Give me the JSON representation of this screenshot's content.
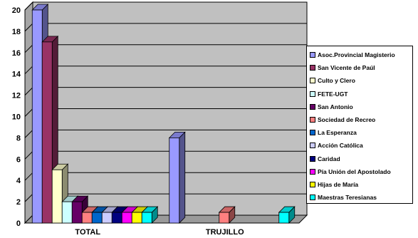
{
  "chart_data": {
    "type": "bar",
    "style": "3d-clustered-column",
    "categories": [
      "TOTAL",
      "TRUJILLO"
    ],
    "ylim": [
      0,
      20
    ],
    "yticks": [
      0,
      2,
      4,
      6,
      8,
      10,
      12,
      14,
      16,
      18,
      20
    ],
    "grid": true,
    "legend_position": "right",
    "series": [
      {
        "name": "Asoc.Provincial Magisterio",
        "color": "#9999ff",
        "values": [
          20,
          8
        ]
      },
      {
        "name": "San Vicente de Paúl",
        "color": "#993366",
        "values": [
          17,
          0
        ]
      },
      {
        "name": "Culto y Clero",
        "color": "#ffffcc",
        "values": [
          5,
          0
        ]
      },
      {
        "name": "FETE-UGT",
        "color": "#ccffff",
        "values": [
          2,
          0
        ]
      },
      {
        "name": "San Antonio",
        "color": "#660066",
        "values": [
          2,
          0
        ]
      },
      {
        "name": "Sociedad de Recreo",
        "color": "#ff8080",
        "values": [
          1,
          1
        ]
      },
      {
        "name": "La Esperanza",
        "color": "#0066cc",
        "values": [
          1,
          0
        ]
      },
      {
        "name": "Acción Católica",
        "color": "#ccccff",
        "values": [
          1,
          0
        ]
      },
      {
        "name": "Caridad",
        "color": "#000080",
        "values": [
          1,
          0
        ]
      },
      {
        "name": "Pía Unión del Apostolado",
        "color": "#ff00ff",
        "values": [
          1,
          0
        ]
      },
      {
        "name": "Hijas de María",
        "color": "#ffff00",
        "values": [
          1,
          0
        ]
      },
      {
        "name": "Maestras Teresianas",
        "color": "#00ffff",
        "values": [
          1,
          1
        ]
      }
    ]
  }
}
